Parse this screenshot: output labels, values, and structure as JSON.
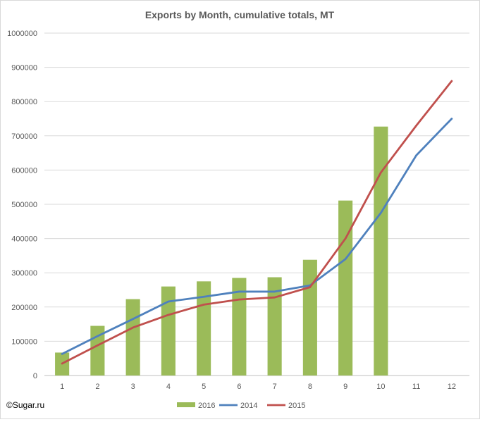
{
  "chart_data": {
    "type": "bar",
    "title": "Exports by Month, cumulative totals, MT",
    "xlabel": "",
    "ylabel": "",
    "categories": [
      "1",
      "2",
      "3",
      "4",
      "5",
      "6",
      "7",
      "8",
      "9",
      "10",
      "11",
      "12"
    ],
    "ylim": [
      0,
      1000000
    ],
    "yticks": [
      "0",
      "100000",
      "200000",
      "300000",
      "400000",
      "500000",
      "600000",
      "700000",
      "800000",
      "900000",
      "1000000"
    ],
    "grid": true,
    "legend_position": "bottom",
    "series": [
      {
        "name": "2016",
        "type": "bar",
        "color": "#9bbb59",
        "values": [
          67000,
          145000,
          223000,
          260000,
          275000,
          285000,
          287000,
          338000,
          511000,
          727000,
          null,
          null
        ]
      },
      {
        "name": "2014",
        "type": "line",
        "color": "#4f81bd",
        "values": [
          63000,
          115000,
          165000,
          216000,
          230000,
          245000,
          245000,
          263000,
          340000,
          475000,
          643000,
          750000
        ]
      },
      {
        "name": "2015",
        "type": "line",
        "color": "#c0504d",
        "values": [
          35000,
          88000,
          140000,
          177000,
          207000,
          222000,
          228000,
          258000,
          400000,
          593000,
          730000,
          860000
        ]
      }
    ]
  },
  "footer": {
    "source": "©Sugar.ru"
  }
}
